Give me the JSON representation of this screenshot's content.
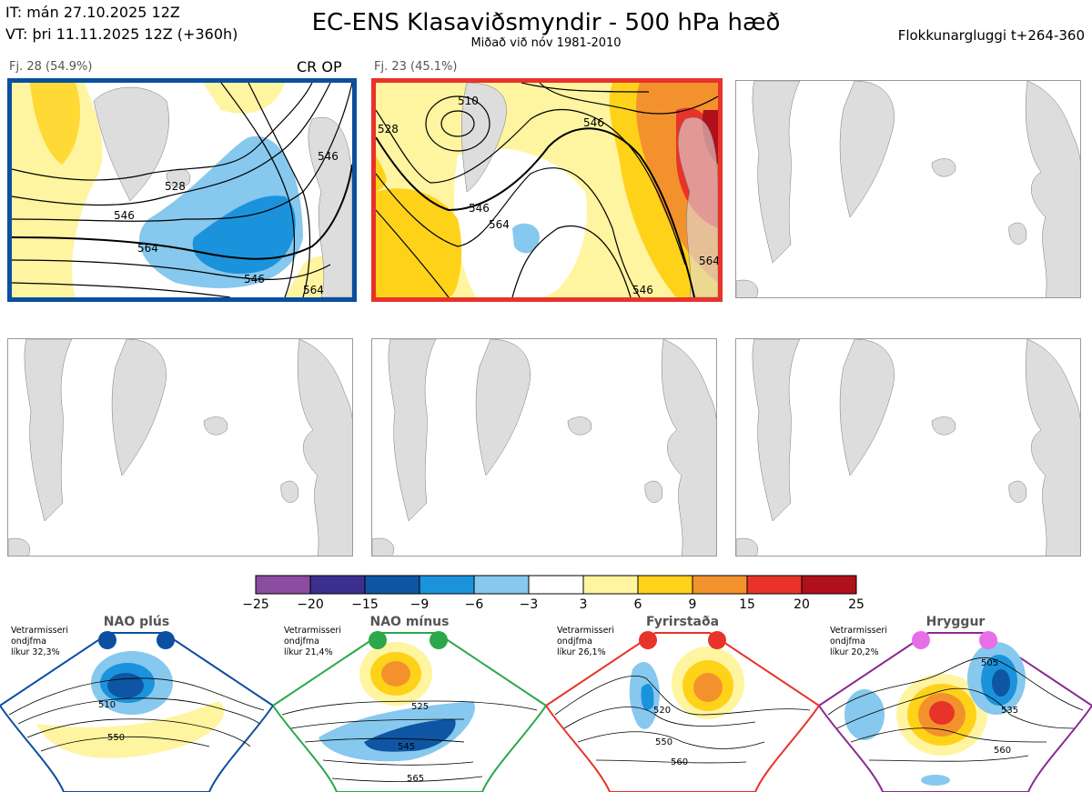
{
  "header": {
    "init_time": "IT: mán 27.10.2025 12Z",
    "valid_time": "VT: þri 11.11.2025 12Z  (+360h)",
    "title": "EC-ENS Klasaviðsmyndir - 500 hPa hæð",
    "subtitle": "Miðað við nóv 1981-2010",
    "window": "Flokkunargluggi t+264-360"
  },
  "clusters": [
    {
      "label": "Fj. 28 (54.9%)",
      "tag": "CR OP",
      "border_color": "#0b4fa0",
      "contours": [
        "528",
        "546",
        "564",
        "546",
        "546",
        "564"
      ]
    },
    {
      "label": "Fj. 23 (45.1%)",
      "tag": "",
      "border_color": "#e8332a",
      "contours": [
        "510",
        "528",
        "546",
        "546",
        "564",
        "564",
        "546"
      ]
    }
  ],
  "empty_panels": 4,
  "colorbar": {
    "ticks": [
      "−25",
      "−20",
      "−15",
      "−9",
      "−6",
      "−3",
      "3",
      "6",
      "9",
      "15",
      "20",
      "25"
    ],
    "colors": [
      "#8a4da0",
      "#3c2f90",
      "#0e56a3",
      "#1a93dc",
      "#86c8ee",
      "#ffffff",
      "#fff4a0",
      "#ffd21a",
      "#f3922d",
      "#e8332a",
      "#b0101a"
    ]
  },
  "regimes": [
    {
      "name": "NAO plús",
      "note": [
        "Vetrarmisseri",
        "ondjfma",
        "líkur 32,3%"
      ],
      "color": "#0b4fa0",
      "labels": [
        "510",
        "550"
      ]
    },
    {
      "name": "NAO mínus",
      "note": [
        "Vetrarmisseri",
        "ondjfma",
        "líkur 21,4%"
      ],
      "color": "#2aa84a",
      "labels": [
        "525",
        "545",
        "565"
      ]
    },
    {
      "name": "Fyrirstaða",
      "note": [
        "Vetrarmisseri",
        "ondjfma",
        "líkur 26,1%"
      ],
      "color": "#e8332a",
      "labels": [
        "520",
        "550",
        "560"
      ]
    },
    {
      "name": "Hryggur",
      "note": [
        "Vetrarmisseri",
        "ondjfma",
        "líkur 20,2%"
      ],
      "color": "#8b2a90",
      "labels": [
        "505",
        "535",
        "560"
      ]
    }
  ]
}
